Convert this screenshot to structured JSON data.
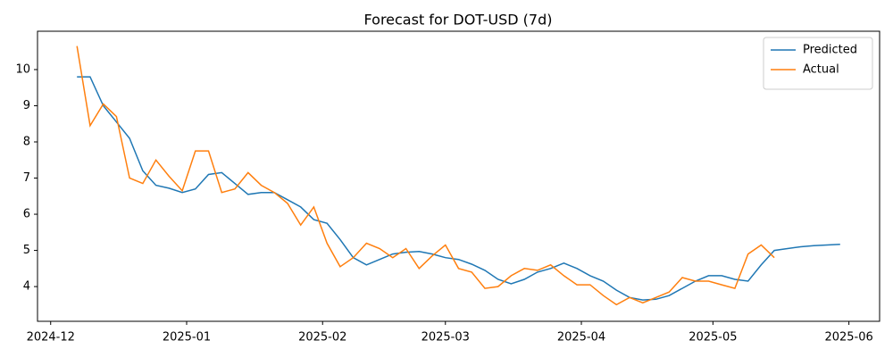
{
  "chart_data": {
    "type": "line",
    "title": "Forecast for DOT-USD (7d)",
    "x": [
      "2024-12-07",
      "2024-12-10",
      "2024-12-13",
      "2024-12-16",
      "2024-12-19",
      "2024-12-22",
      "2024-12-25",
      "2024-12-28",
      "2024-12-31",
      "2025-01-03",
      "2025-01-06",
      "2025-01-09",
      "2025-01-12",
      "2025-01-15",
      "2025-01-18",
      "2025-01-21",
      "2025-01-24",
      "2025-01-27",
      "2025-01-30",
      "2025-02-02",
      "2025-02-05",
      "2025-02-08",
      "2025-02-11",
      "2025-02-14",
      "2025-02-17",
      "2025-02-20",
      "2025-02-23",
      "2025-02-26",
      "2025-03-01",
      "2025-03-04",
      "2025-03-07",
      "2025-03-10",
      "2025-03-13",
      "2025-03-16",
      "2025-03-19",
      "2025-03-22",
      "2025-03-25",
      "2025-03-28",
      "2025-03-31",
      "2025-04-03",
      "2025-04-06",
      "2025-04-09",
      "2025-04-12",
      "2025-04-15",
      "2025-04-18",
      "2025-04-21",
      "2025-04-24",
      "2025-04-27",
      "2025-04-30",
      "2025-05-03",
      "2025-05-06",
      "2025-05-09",
      "2025-05-12",
      "2025-05-15",
      "2025-05-18",
      "2025-05-21",
      "2025-05-24",
      "2025-05-27",
      "2025-05-30"
    ],
    "series": [
      {
        "name": "Predicted",
        "color": "#1f77b4",
        "values": [
          9.8,
          9.8,
          9.0,
          8.55,
          8.1,
          7.2,
          6.8,
          6.72,
          6.6,
          6.7,
          7.1,
          7.15,
          6.85,
          6.55,
          6.6,
          6.6,
          6.4,
          6.2,
          5.85,
          5.75,
          5.3,
          4.8,
          4.6,
          4.75,
          4.9,
          4.95,
          4.97,
          4.9,
          4.8,
          4.75,
          4.62,
          4.45,
          4.2,
          4.08,
          4.2,
          4.4,
          4.5,
          4.65,
          4.5,
          4.3,
          4.15,
          3.9,
          3.7,
          3.63,
          3.65,
          3.75,
          3.95,
          4.15,
          4.3,
          4.3,
          4.2,
          4.15,
          4.6,
          5.0,
          5.05,
          5.1,
          5.13,
          5.15,
          5.17
        ]
      },
      {
        "name": "Actual",
        "color": "#ff7f0e",
        "values": [
          10.65,
          8.45,
          9.05,
          8.7,
          7.0,
          6.85,
          7.5,
          7.05,
          6.65,
          7.75,
          7.75,
          6.6,
          6.7,
          7.15,
          6.8,
          6.6,
          6.3,
          5.7,
          6.2,
          5.2,
          4.55,
          4.8,
          5.2,
          5.05,
          4.8,
          5.05,
          4.5,
          4.85,
          5.15,
          4.5,
          4.4,
          3.95,
          4.0,
          4.3,
          4.5,
          4.45,
          4.6,
          4.3,
          4.05,
          4.05,
          3.75,
          3.5,
          3.7,
          3.55,
          3.7,
          3.85,
          4.25,
          4.15,
          4.15,
          4.05,
          3.95,
          4.9,
          5.15,
          4.8,
          null,
          null,
          null,
          null,
          null
        ]
      }
    ],
    "xlim": [
      "2024-11-28",
      "2025-06-08"
    ],
    "xticks": [
      {
        "value": "2024-12-01",
        "label": "2024-12"
      },
      {
        "value": "2025-01-01",
        "label": "2025-01"
      },
      {
        "value": "2025-02-01",
        "label": "2025-02"
      },
      {
        "value": "2025-03-01",
        "label": "2025-03"
      },
      {
        "value": "2025-04-01",
        "label": "2025-04"
      },
      {
        "value": "2025-05-01",
        "label": "2025-05"
      },
      {
        "value": "2025-06-01",
        "label": "2025-06"
      }
    ],
    "ylim": [
      3.04,
      11.06
    ],
    "yticks": [
      4,
      5,
      6,
      7,
      8,
      9,
      10
    ],
    "grid": false,
    "legend": "upper right"
  }
}
